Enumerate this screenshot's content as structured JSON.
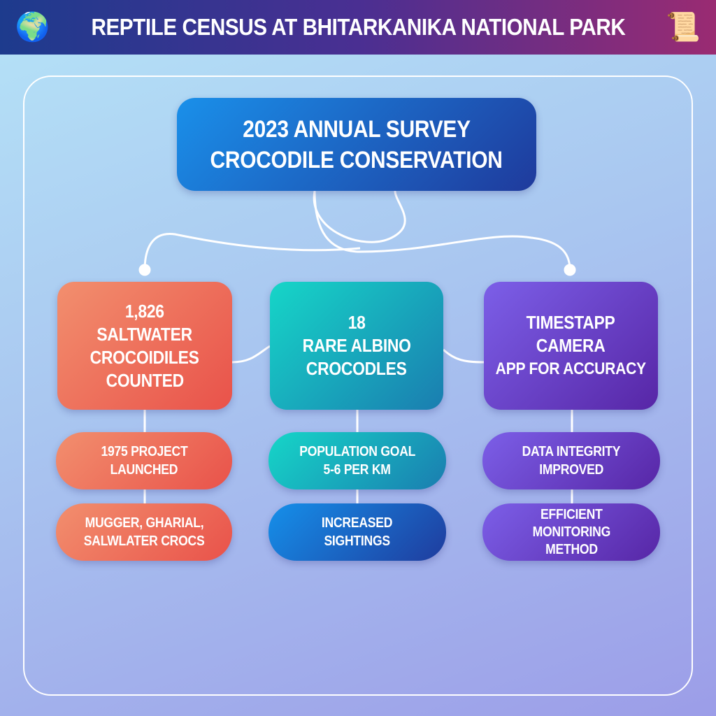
{
  "header": {
    "title": "REPTILE CENSUS AT BHITARKANIKA NATIONAL PARK",
    "left_icon": "globe-icon",
    "right_icon": "scroll-icon"
  },
  "root": {
    "line1": "2023 ANNUAL SURVEY",
    "line2": "CROCODILE CONSERVATION"
  },
  "columns": [
    {
      "main": [
        "1,826",
        "SALTWATER",
        "CROCOIDILES",
        "COUNTED"
      ],
      "sub1": [
        "1975 PROJECT",
        "LAUNCHED"
      ],
      "sub2": [
        "MUGGER, GHARIAL,",
        "SALWLATER CROCS"
      ]
    },
    {
      "main": [
        "18",
        "RARE ALBINO",
        "CROCODLES"
      ],
      "sub1": [
        "POPULATION GOAL",
        "5-6 PER KM"
      ],
      "sub2": [
        "INCREASED",
        "SIGHTINGS"
      ]
    },
    {
      "main": [
        "TIMESTAPP",
        "CAMERA",
        "APP FOR ACCURACY"
      ],
      "sub1": [
        "DATA INTEGRITY",
        "IMPROVED"
      ],
      "sub2": [
        "EFFICIENT",
        "MONITORING",
        "METHOD"
      ]
    }
  ],
  "colors": {
    "coral": "#ec6a55",
    "teal": "#17a9bf",
    "blue": "#1a6fd0",
    "purple": "#6a3fc8"
  }
}
